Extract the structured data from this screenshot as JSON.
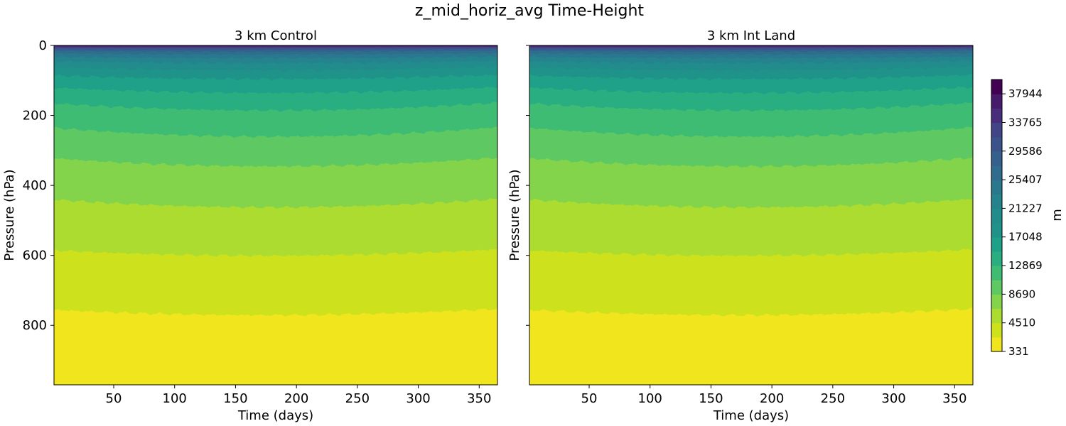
{
  "chart_data": {
    "type": "heatmap",
    "title": "z_mid_horiz_avg Time-Height",
    "variable": "z_mid_horiz_avg",
    "x": {
      "label": "Time (days)",
      "range": [
        1,
        365
      ],
      "ticks": [
        50,
        100,
        150,
        200,
        250,
        300,
        350
      ]
    },
    "y": {
      "label": "Pressure (hPa)",
      "range": [
        0,
        970
      ],
      "inverted": true,
      "ticks": [
        0,
        200,
        400,
        600,
        800
      ]
    },
    "colorbar": {
      "label": "m",
      "range": [
        331,
        40033
      ],
      "ticks": [
        331,
        4510,
        8690,
        12869,
        17048,
        21227,
        25407,
        29586,
        33765,
        37944
      ]
    },
    "level_colors": [
      "#f1e51d",
      "#cde11d",
      "#addc30",
      "#84d44b",
      "#5ec962",
      "#3fbc73",
      "#28ae80",
      "#1fa088",
      "#1f9289",
      "#228c8d",
      "#25838e",
      "#2a788e",
      "#2f6c8e",
      "#355f8d",
      "#3b528b",
      "#414487",
      "#472d7b",
      "#481a6c",
      "#440154"
    ],
    "contour_boundaries_hPa": [
      {
        "level_m": 2000,
        "start": 755,
        "mid": 770,
        "end": 752
      },
      {
        "level_m": 4510,
        "start": 585,
        "mid": 600,
        "end": 582
      },
      {
        "level_m": 6500,
        "start": 440,
        "mid": 462,
        "end": 438
      },
      {
        "level_m": 8690,
        "start": 322,
        "mid": 345,
        "end": 320
      },
      {
        "level_m": 10700,
        "start": 235,
        "mid": 260,
        "end": 233
      },
      {
        "level_m": 12869,
        "start": 165,
        "mid": 185,
        "end": 163
      },
      {
        "level_m": 15000,
        "start": 120,
        "mid": 135,
        "end": 118
      },
      {
        "level_m": 17048,
        "start": 85,
        "mid": 95,
        "end": 83
      },
      {
        "level_m": 19100,
        "start": 62,
        "mid": 70,
        "end": 60
      },
      {
        "level_m": 21227,
        "start": 44,
        "mid": 50,
        "end": 43
      },
      {
        "level_m": 23300,
        "start": 32,
        "mid": 36,
        "end": 31
      },
      {
        "level_m": 25407,
        "start": 22,
        "mid": 25,
        "end": 21
      },
      {
        "level_m": 27500,
        "start": 15,
        "mid": 17,
        "end": 14
      },
      {
        "level_m": 29586,
        "start": 10,
        "mid": 11,
        "end": 9
      },
      {
        "level_m": 31700,
        "start": 6,
        "mid": 7,
        "end": 6
      },
      {
        "level_m": 33765,
        "start": 4,
        "mid": 4,
        "end": 3
      },
      {
        "level_m": 35800,
        "start": 2,
        "mid": 2,
        "end": 2
      },
      {
        "level_m": 37944,
        "start": 1,
        "mid": 1,
        "end": 1
      }
    ],
    "panels": [
      {
        "title": "3 km Control",
        "xlabel": "Time (days)",
        "ylabel": "Pressure (hPa)"
      },
      {
        "title": "3 km Int Land",
        "xlabel": "Time (days)",
        "ylabel": "Pressure (hPa)"
      }
    ]
  }
}
